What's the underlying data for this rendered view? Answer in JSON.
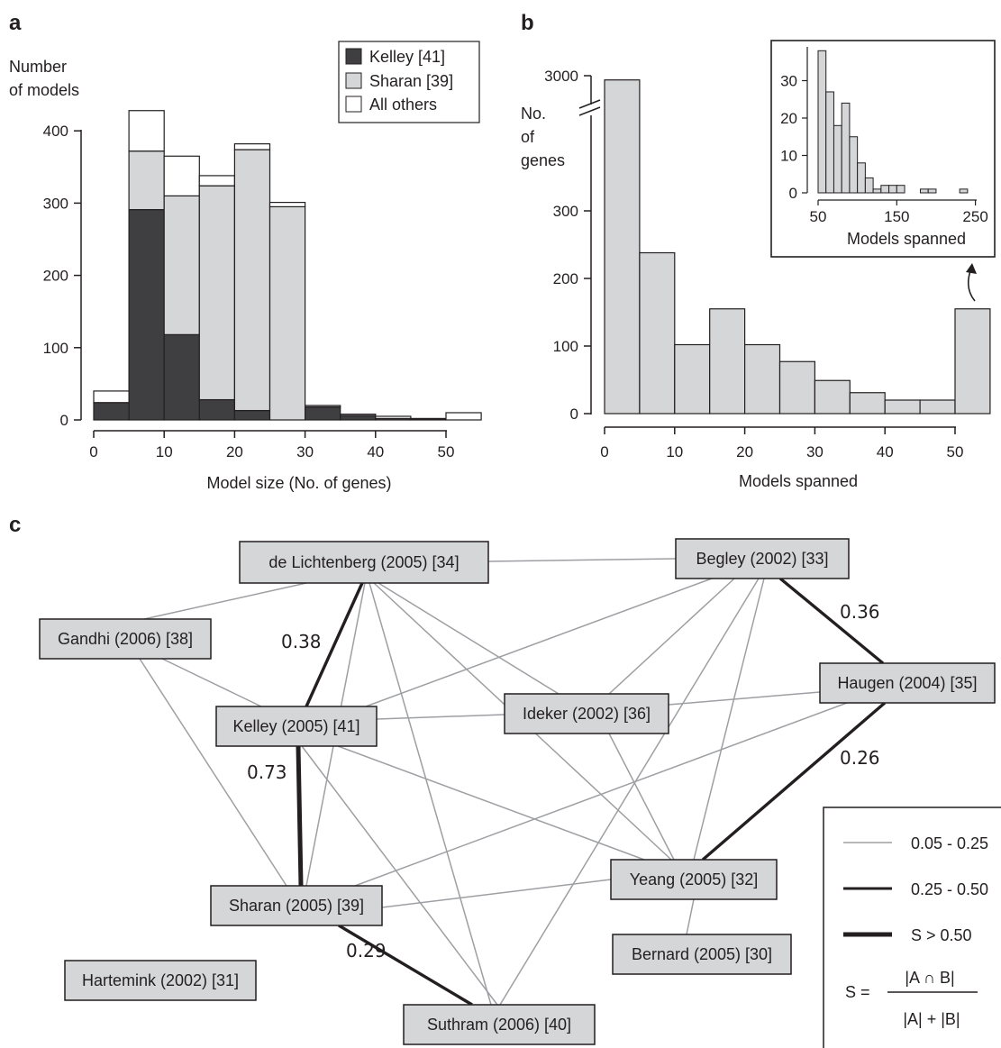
{
  "panels": {
    "a": "a",
    "b": "b",
    "c": "c"
  },
  "chart_data": [
    {
      "type": "bar",
      "stacked": true,
      "panel": "a",
      "ylabel": [
        "Number",
        "of models"
      ],
      "xlabel": "Model size (No. of genes)",
      "xlim": [
        0,
        55
      ],
      "ylim": [
        0,
        420
      ],
      "xticks": [
        "0",
        "10",
        "20",
        "30",
        "40",
        "50"
      ],
      "yticks": [
        "0",
        "100",
        "200",
        "300",
        "400"
      ],
      "bin_width": 5,
      "bins": [
        0,
        5,
        10,
        15,
        20,
        25,
        30,
        35,
        40,
        45,
        50
      ],
      "series": [
        {
          "name": "Kelley [41]",
          "color": "#3f3f41",
          "values": [
            24,
            291,
            118,
            28,
            13,
            0,
            18,
            6,
            2,
            1,
            0
          ]
        },
        {
          "name": "Sharan [39]",
          "color": "#d4d6d8",
          "values": [
            0,
            81,
            192,
            296,
            361,
            295,
            2,
            2,
            0,
            0,
            0
          ]
        },
        {
          "name": "All others",
          "color": "#ffffff",
          "values": [
            16,
            56,
            55,
            14,
            8,
            6,
            0,
            0,
            3,
            1,
            10
          ]
        }
      ],
      "legend_position": "top-right"
    },
    {
      "type": "bar",
      "panel": "b",
      "ylabel": [
        "No.",
        "of",
        "genes"
      ],
      "xlabel": "Models spanned",
      "xticks": [
        "0",
        "10",
        "20",
        "30",
        "40",
        "50"
      ],
      "yticks": [
        "0",
        "100",
        "200",
        "300",
        "3000"
      ],
      "broken_axis": true,
      "bin_width": 5,
      "bins": [
        0,
        5,
        10,
        15,
        20,
        25,
        30,
        35,
        40,
        45,
        50
      ],
      "values": [
        2900,
        238,
        102,
        155,
        102,
        77,
        49,
        31,
        20,
        20,
        155
      ],
      "last_bin_label": "50+",
      "color": "#d4d6d8"
    },
    {
      "type": "bar",
      "panel": "b-inset",
      "xlabel": "Models spanned",
      "xlim": [
        50,
        250
      ],
      "ylim": [
        0,
        38
      ],
      "xticks": [
        "50",
        "150",
        "250"
      ],
      "yticks": [
        "0",
        "10",
        "20",
        "30"
      ],
      "bin_width": 10,
      "bins": [
        50,
        60,
        70,
        80,
        90,
        100,
        110,
        120,
        130,
        140,
        150,
        160,
        170,
        180,
        190,
        200,
        210,
        220,
        230,
        240
      ],
      "values": [
        38,
        27,
        18,
        24,
        15,
        8,
        4,
        1,
        2,
        2,
        2,
        0,
        0,
        1,
        1,
        0,
        0,
        0,
        1,
        0
      ],
      "color": "#d4d6d8"
    }
  ],
  "network": {
    "nodes": [
      {
        "id": "lichtenberg",
        "label": "de Lichtenberg (2005) [34]"
      },
      {
        "id": "begley",
        "label": "Begley (2002) [33]"
      },
      {
        "id": "gandhi",
        "label": "Gandhi (2006) [38]"
      },
      {
        "id": "haugen",
        "label": "Haugen (2004) [35]"
      },
      {
        "id": "kelley",
        "label": "Kelley (2005) [41]"
      },
      {
        "id": "ideker",
        "label": "Ideker (2002) [36]"
      },
      {
        "id": "yeang",
        "label": "Yeang (2005) [32]"
      },
      {
        "id": "sharan",
        "label": "Sharan (2005) [39]"
      },
      {
        "id": "bernard",
        "label": "Bernard (2005) [30]"
      },
      {
        "id": "hartemink",
        "label": "Hartemink (2002) [31]"
      },
      {
        "id": "suthram",
        "label": "Suthram (2006) [40]"
      }
    ],
    "edges": [
      {
        "source": "lichtenberg",
        "target": "begley",
        "weight": "thin"
      },
      {
        "source": "lichtenberg",
        "target": "gandhi",
        "weight": "thin"
      },
      {
        "source": "lichtenberg",
        "target": "kelley",
        "weight": "medium",
        "label": "0.38"
      },
      {
        "source": "lichtenberg",
        "target": "ideker",
        "weight": "thin"
      },
      {
        "source": "lichtenberg",
        "target": "sharan",
        "weight": "thin"
      },
      {
        "source": "lichtenberg",
        "target": "suthram",
        "weight": "thin"
      },
      {
        "source": "lichtenberg",
        "target": "yeang",
        "weight": "thin"
      },
      {
        "source": "begley",
        "target": "haugen",
        "weight": "medium",
        "label": "0.36"
      },
      {
        "source": "begley",
        "target": "kelley",
        "weight": "thin"
      },
      {
        "source": "begley",
        "target": "ideker",
        "weight": "thin"
      },
      {
        "source": "begley",
        "target": "yeang",
        "weight": "thin"
      },
      {
        "source": "begley",
        "target": "suthram",
        "weight": "thin"
      },
      {
        "source": "gandhi",
        "target": "kelley",
        "weight": "thin"
      },
      {
        "source": "gandhi",
        "target": "sharan",
        "weight": "thin"
      },
      {
        "source": "haugen",
        "target": "ideker",
        "weight": "thin"
      },
      {
        "source": "haugen",
        "target": "yeang",
        "weight": "medium",
        "label": "0.26"
      },
      {
        "source": "haugen",
        "target": "sharan",
        "weight": "thin"
      },
      {
        "source": "kelley",
        "target": "ideker",
        "weight": "thin"
      },
      {
        "source": "kelley",
        "target": "sharan",
        "weight": "thick",
        "label": "0.73"
      },
      {
        "source": "kelley",
        "target": "yeang",
        "weight": "thin"
      },
      {
        "source": "kelley",
        "target": "suthram",
        "weight": "thin"
      },
      {
        "source": "ideker",
        "target": "yeang",
        "weight": "thin"
      },
      {
        "source": "yeang",
        "target": "sharan",
        "weight": "thin"
      },
      {
        "source": "yeang",
        "target": "bernard",
        "weight": "thin"
      },
      {
        "source": "sharan",
        "target": "suthram",
        "weight": "medium",
        "label": "0.29"
      }
    ],
    "legend": {
      "thin": "0.05 - 0.25",
      "medium": "0.25 - 0.50",
      "thick": "S > 0.50",
      "formula": {
        "lhs": "S =",
        "numerator": "|A ∩ B|",
        "denominator": "|A| + |B|"
      }
    }
  }
}
